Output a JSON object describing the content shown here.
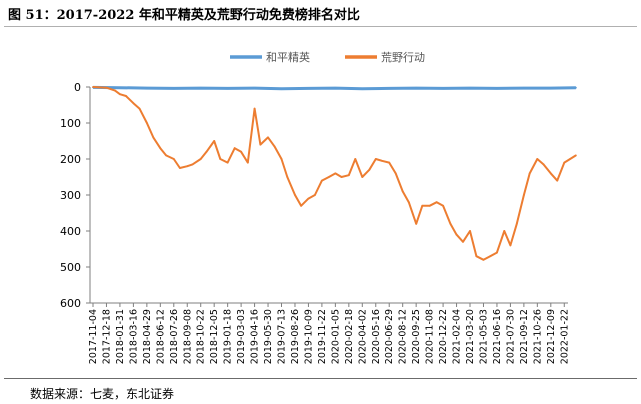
{
  "figure": {
    "title": "图 51：2017-2022 年和平精英及荒野行动免费榜排名对比",
    "source": "数据来源：七麦，东北证券"
  },
  "chart_data": {
    "type": "line",
    "title": "",
    "xlabel": "",
    "ylabel": "",
    "y_inverted": true,
    "ylim": [
      0,
      600
    ],
    "yticks": [
      0,
      100,
      200,
      300,
      400,
      500,
      600
    ],
    "x_tick_labels": [
      "2017-11-04",
      "2017-12-18",
      "2018-01-31",
      "2018-03-16",
      "2018-04-29",
      "2018-06-12",
      "2018-07-26",
      "2018-09-08",
      "2018-10-22",
      "2018-12-05",
      "2019-01-18",
      "2019-03-03",
      "2019-04-16",
      "2019-05-30",
      "2019-07-13",
      "2019-08-26",
      "2019-10-09",
      "2019-11-22",
      "2020-01-05",
      "2020-02-18",
      "2020-04-02",
      "2020-05-16",
      "2020-06-29",
      "2020-08-12",
      "2020-09-25",
      "2020-11-08",
      "2020-12-22",
      "2021-02-04",
      "2021-03-20",
      "2021-05-03",
      "2021-06-16",
      "2021-07-30",
      "2021-09-12",
      "2021-10-26",
      "2021-12-09",
      "2022-01-22"
    ],
    "grid": false,
    "legend_position": "top-center",
    "series": [
      {
        "name": "和平精英",
        "color": "#5b9bd5",
        "x": [
          "2017-11-04",
          "2018-01-31",
          "2018-04-29",
          "2018-07-26",
          "2018-10-22",
          "2019-01-18",
          "2019-04-16",
          "2019-07-13",
          "2019-10-09",
          "2020-01-05",
          "2020-04-02",
          "2020-06-29",
          "2020-09-25",
          "2020-12-22",
          "2021-03-20",
          "2021-06-16",
          "2021-09-12",
          "2021-12-09",
          "2022-03-01"
        ],
        "values": [
          1,
          2,
          3,
          4,
          3,
          4,
          3,
          5,
          4,
          3,
          5,
          4,
          3,
          4,
          3,
          4,
          3,
          3,
          2
        ]
      },
      {
        "name": "荒野行动",
        "color": "#ed7d31",
        "x": [
          "2017-11-04",
          "2017-12-18",
          "2018-01-15",
          "2018-01-31",
          "2018-02-20",
          "2018-03-16",
          "2018-04-05",
          "2018-04-29",
          "2018-05-20",
          "2018-06-12",
          "2018-07-01",
          "2018-07-26",
          "2018-08-15",
          "2018-09-08",
          "2018-09-25",
          "2018-10-22",
          "2018-11-10",
          "2018-12-05",
          "2018-12-25",
          "2019-01-18",
          "2019-02-10",
          "2019-03-03",
          "2019-03-25",
          "2019-04-16",
          "2019-05-05",
          "2019-05-30",
          "2019-06-20",
          "2019-07-13",
          "2019-08-01",
          "2019-08-26",
          "2019-09-15",
          "2019-10-09",
          "2019-10-30",
          "2019-11-22",
          "2019-12-15",
          "2020-01-05",
          "2020-01-25",
          "2020-02-18",
          "2020-03-10",
          "2020-04-02",
          "2020-04-25",
          "2020-05-16",
          "2020-06-05",
          "2020-06-29",
          "2020-07-20",
          "2020-08-12",
          "2020-09-01",
          "2020-09-25",
          "2020-10-15",
          "2020-11-08",
          "2020-12-01",
          "2020-12-22",
          "2021-01-15",
          "2021-02-04",
          "2021-02-25",
          "2021-03-20",
          "2021-04-10",
          "2021-05-03",
          "2021-05-25",
          "2021-06-16",
          "2021-07-10",
          "2021-07-30",
          "2021-08-20",
          "2021-09-12",
          "2021-10-01",
          "2021-10-26",
          "2021-11-15",
          "2021-12-09",
          "2021-12-30",
          "2022-01-22",
          "2022-02-10",
          "2022-03-01"
        ],
        "values": [
          0,
          2,
          10,
          20,
          25,
          45,
          60,
          100,
          140,
          170,
          190,
          200,
          225,
          220,
          215,
          200,
          180,
          150,
          200,
          210,
          170,
          180,
          210,
          60,
          160,
          140,
          165,
          200,
          250,
          300,
          330,
          310,
          300,
          260,
          250,
          240,
          250,
          245,
          200,
          250,
          230,
          200,
          205,
          210,
          240,
          290,
          320,
          380,
          330,
          330,
          320,
          330,
          380,
          410,
          430,
          400,
          470,
          480,
          470,
          460,
          400,
          440,
          380,
          300,
          240,
          200,
          215,
          240,
          260,
          210,
          200,
          190
        ]
      }
    ]
  }
}
